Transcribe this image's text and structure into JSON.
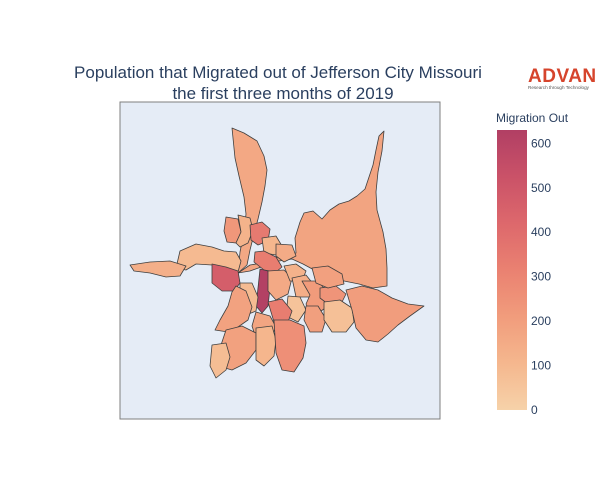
{
  "title": {
    "line1": "Population that Migrated out of Jefferson City Missouri",
    "line2": "the first three months of 2019"
  },
  "brand": {
    "name": "ADVAN",
    "tagline": "Research through Technology",
    "color": "#d6442c"
  },
  "map": {
    "background_color": "#e5ecf6",
    "frame_color": "#7f7f7f"
  },
  "colorbar": {
    "title": "Migration Out",
    "min": 0,
    "max": 630,
    "ticks": [
      "0",
      "100",
      "200",
      "300",
      "400",
      "500",
      "600"
    ],
    "colorscale": [
      "#f6d2a9",
      "#f5b78e",
      "#f19c7c",
      "#ea8171",
      "#dd686c",
      "#ca5268",
      "#b13f64"
    ]
  },
  "regions": [
    {
      "value": 180
    },
    {
      "value": 165
    },
    {
      "value": 230
    },
    {
      "value": 120
    },
    {
      "value": 345
    },
    {
      "value": 110
    },
    {
      "value": 150
    },
    {
      "value": 95
    },
    {
      "value": 330
    },
    {
      "value": 470
    },
    {
      "value": 620
    },
    {
      "value": 90
    },
    {
      "value": 185
    },
    {
      "value": 160
    },
    {
      "value": 125
    },
    {
      "value": 140
    },
    {
      "value": 60
    },
    {
      "value": 330
    },
    {
      "value": 175
    },
    {
      "value": 190
    },
    {
      "value": 80
    },
    {
      "value": 110
    },
    {
      "value": 260
    },
    {
      "value": 215
    },
    {
      "value": 200
    },
    {
      "value": 240
    },
    {
      "value": 70
    },
    {
      "value": 205
    },
    {
      "value": 195
    },
    {
      "value": 135
    }
  ]
}
